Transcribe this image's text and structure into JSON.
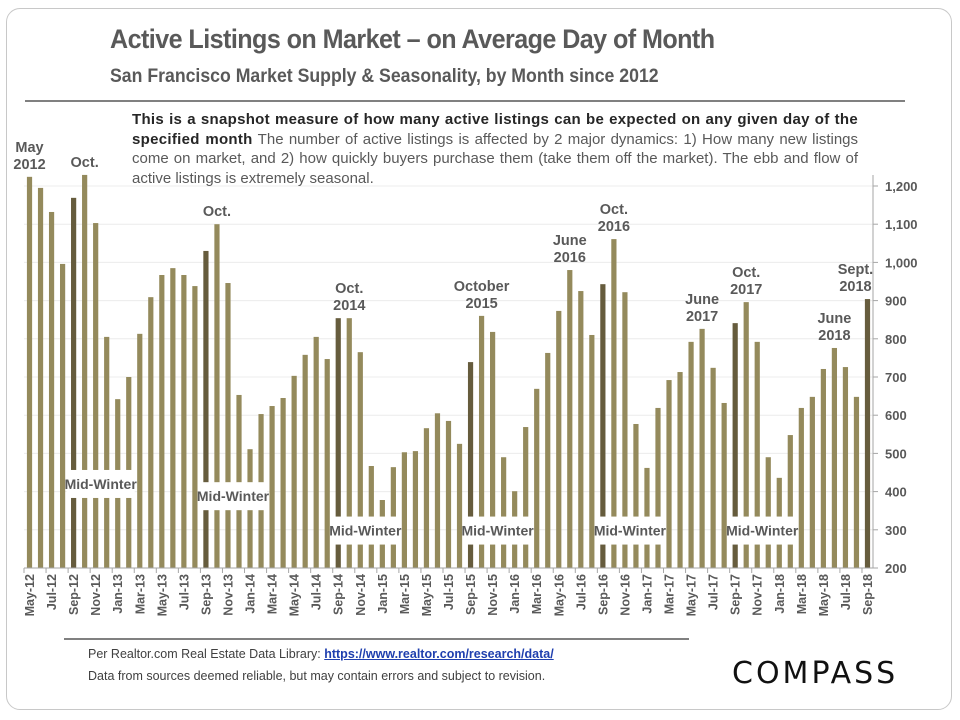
{
  "header": {
    "title": "Active Listings on Market – on Average Day of Month",
    "subtitle": "San Francisco Market Supply & Seasonality, by Month since 2012"
  },
  "description": {
    "bold": "This is a snapshot measure of how many active listings can be expected on any given day of the specified month",
    "normal": " The number of active listings is affected by 2 major dynamics: 1) How many new listings come on market, and 2) how quickly buyers purchase them (take them off the market). The ebb and flow of active listings is extremely seasonal."
  },
  "footer": {
    "source_prefix": "Per Realtor.com Real Estate  Data Library: ",
    "source_link": "https://www.realtor.com/research/data/",
    "disclaimer": "Data from sources  deemed reliable, but may contain errors and subject to revision.",
    "logo": "COMPASS"
  },
  "colors": {
    "bar": "#948a5c",
    "bar_highlight": "#665c3d",
    "text": "#595959",
    "grid": "#ececec"
  },
  "chart_data": {
    "type": "bar",
    "title": "Active Listings on Market – on Average Day of Month",
    "xlabel": "",
    "ylabel": "",
    "ylim": [
      200,
      1250
    ],
    "y_ticks": [
      200,
      300,
      400,
      500,
      600,
      700,
      800,
      900,
      1000,
      1100,
      1200
    ],
    "y_tick_labels": [
      "200",
      "300",
      "400",
      "500",
      "600",
      "700",
      "800",
      "900",
      "1,000",
      "1,100",
      "1,200"
    ],
    "y_axis_side": "right",
    "grid": true,
    "categories": [
      "May-12",
      "Jun-12",
      "Jul-12",
      "Aug-12",
      "Sep-12",
      "Oct-12",
      "Nov-12",
      "Dec-12",
      "Jan-13",
      "Feb-13",
      "Mar-13",
      "Apr-13",
      "May-13",
      "Jun-13",
      "Jul-13",
      "Aug-13",
      "Sep-13",
      "Oct-13",
      "Nov-13",
      "Dec-13",
      "Jan-14",
      "Feb-14",
      "Mar-14",
      "Apr-14",
      "May-14",
      "Jun-14",
      "Jul-14",
      "Aug-14",
      "Sep-14",
      "Oct-14",
      "Nov-14",
      "Dec-14",
      "Jan-15",
      "Feb-15",
      "Mar-15",
      "Apr-15",
      "May-15",
      "Jun-15",
      "Jul-15",
      "Aug-15",
      "Sep-15",
      "Oct-15",
      "Nov-15",
      "Dec-15",
      "Jan-16",
      "Feb-16",
      "Mar-16",
      "Apr-16",
      "May-16",
      "Jun-16",
      "Jul-16",
      "Aug-16",
      "Sep-16",
      "Oct-16",
      "Nov-16",
      "Dec-16",
      "Jan-17",
      "Feb-17",
      "Mar-17",
      "Apr-17",
      "May-17",
      "Jun-17",
      "Jul-17",
      "Aug-17",
      "Sep-17",
      "Oct-17",
      "Nov-17",
      "Dec-17",
      "Jan-18",
      "Feb-18",
      "Mar-18",
      "Apr-18",
      "May-18",
      "Jun-18",
      "Jul-18",
      "Aug-18",
      "Sep-18"
    ],
    "tick_labels_shown": [
      "May-12",
      "Jul-12",
      "Sep-12",
      "Nov-12",
      "Jan-13",
      "Mar-13",
      "May-13",
      "Jul-13",
      "Sep-13",
      "Nov-13",
      "Jan-14",
      "Mar-14",
      "May-14",
      "Jul-14",
      "Sep-14",
      "Nov-14",
      "Jan-15",
      "Mar-15",
      "May-15",
      "Jul-15",
      "Sep-15",
      "Nov-15",
      "Jan-16",
      "Mar-16",
      "May-16",
      "Jul-16",
      "Sep-16",
      "Nov-16",
      "Jan-17",
      "Mar-17",
      "May-17",
      "Jul-17",
      "Sep-17",
      "Nov-17",
      "Jan-18",
      "Mar-18",
      "May-18",
      "Jul-18",
      "Sep-18"
    ],
    "values": [
      1224,
      1195,
      1132,
      996,
      1169,
      1229,
      1103,
      805,
      642,
      700,
      813,
      909,
      967,
      985,
      967,
      938,
      1030,
      1100,
      946,
      653,
      511,
      603,
      624,
      645,
      703,
      758,
      805,
      747,
      854,
      854,
      765,
      467,
      378,
      464,
      503,
      506,
      566,
      605,
      585,
      525,
      739,
      860,
      818,
      490,
      401,
      569,
      669,
      763,
      873,
      980,
      925,
      810,
      943,
      1061,
      922,
      577,
      462,
      619,
      692,
      713,
      792,
      826,
      724,
      632,
      841,
      896,
      792,
      490,
      436,
      548,
      619,
      648,
      721,
      776,
      726,
      648,
      904
    ],
    "highlighted": [
      "Sep-12",
      "Sep-13",
      "Sep-14",
      "Sep-15",
      "Sep-16",
      "Sep-17",
      "Sep-18"
    ],
    "annotations": [
      {
        "category": "May-12",
        "lines": [
          "May",
          "2012"
        ]
      },
      {
        "category": "Oct-12",
        "lines": [
          "Oct."
        ]
      },
      {
        "category": "Oct-13",
        "lines": [
          "Oct."
        ]
      },
      {
        "category": "Oct-14",
        "lines": [
          "Oct.",
          "2014"
        ]
      },
      {
        "category": "Oct-15",
        "lines": [
          "October",
          "2015"
        ]
      },
      {
        "category": "Jun-16",
        "lines": [
          "June",
          "2016"
        ]
      },
      {
        "category": "Oct-16",
        "lines": [
          "Oct.",
          "2016"
        ]
      },
      {
        "category": "Jun-17",
        "lines": [
          "June",
          "2017"
        ]
      },
      {
        "category": "Oct-17",
        "lines": [
          "Oct.",
          "2017"
        ]
      },
      {
        "category": "Jun-18",
        "lines": [
          "June",
          "2018"
        ]
      },
      {
        "category": "Sep-18",
        "lines": [
          "Sept.",
          "2018"
        ]
      }
    ],
    "band_labels": [
      {
        "text": "Mid-Winter",
        "from": "Sep-12",
        "to": "Feb-13",
        "level": 420
      },
      {
        "text": "Mid-Winter",
        "from": "Sep-13",
        "to": "Feb-14",
        "level": 388
      },
      {
        "text": "Mid-Winter",
        "from": "Sep-14",
        "to": "Feb-15",
        "level": 298
      },
      {
        "text": "Mid-Winter",
        "from": "Sep-15",
        "to": "Feb-16",
        "level": 298
      },
      {
        "text": "Mid-Winter",
        "from": "Sep-16",
        "to": "Feb-17",
        "level": 298
      },
      {
        "text": "Mid-Winter",
        "from": "Sep-17",
        "to": "Feb-18",
        "level": 298
      }
    ]
  }
}
